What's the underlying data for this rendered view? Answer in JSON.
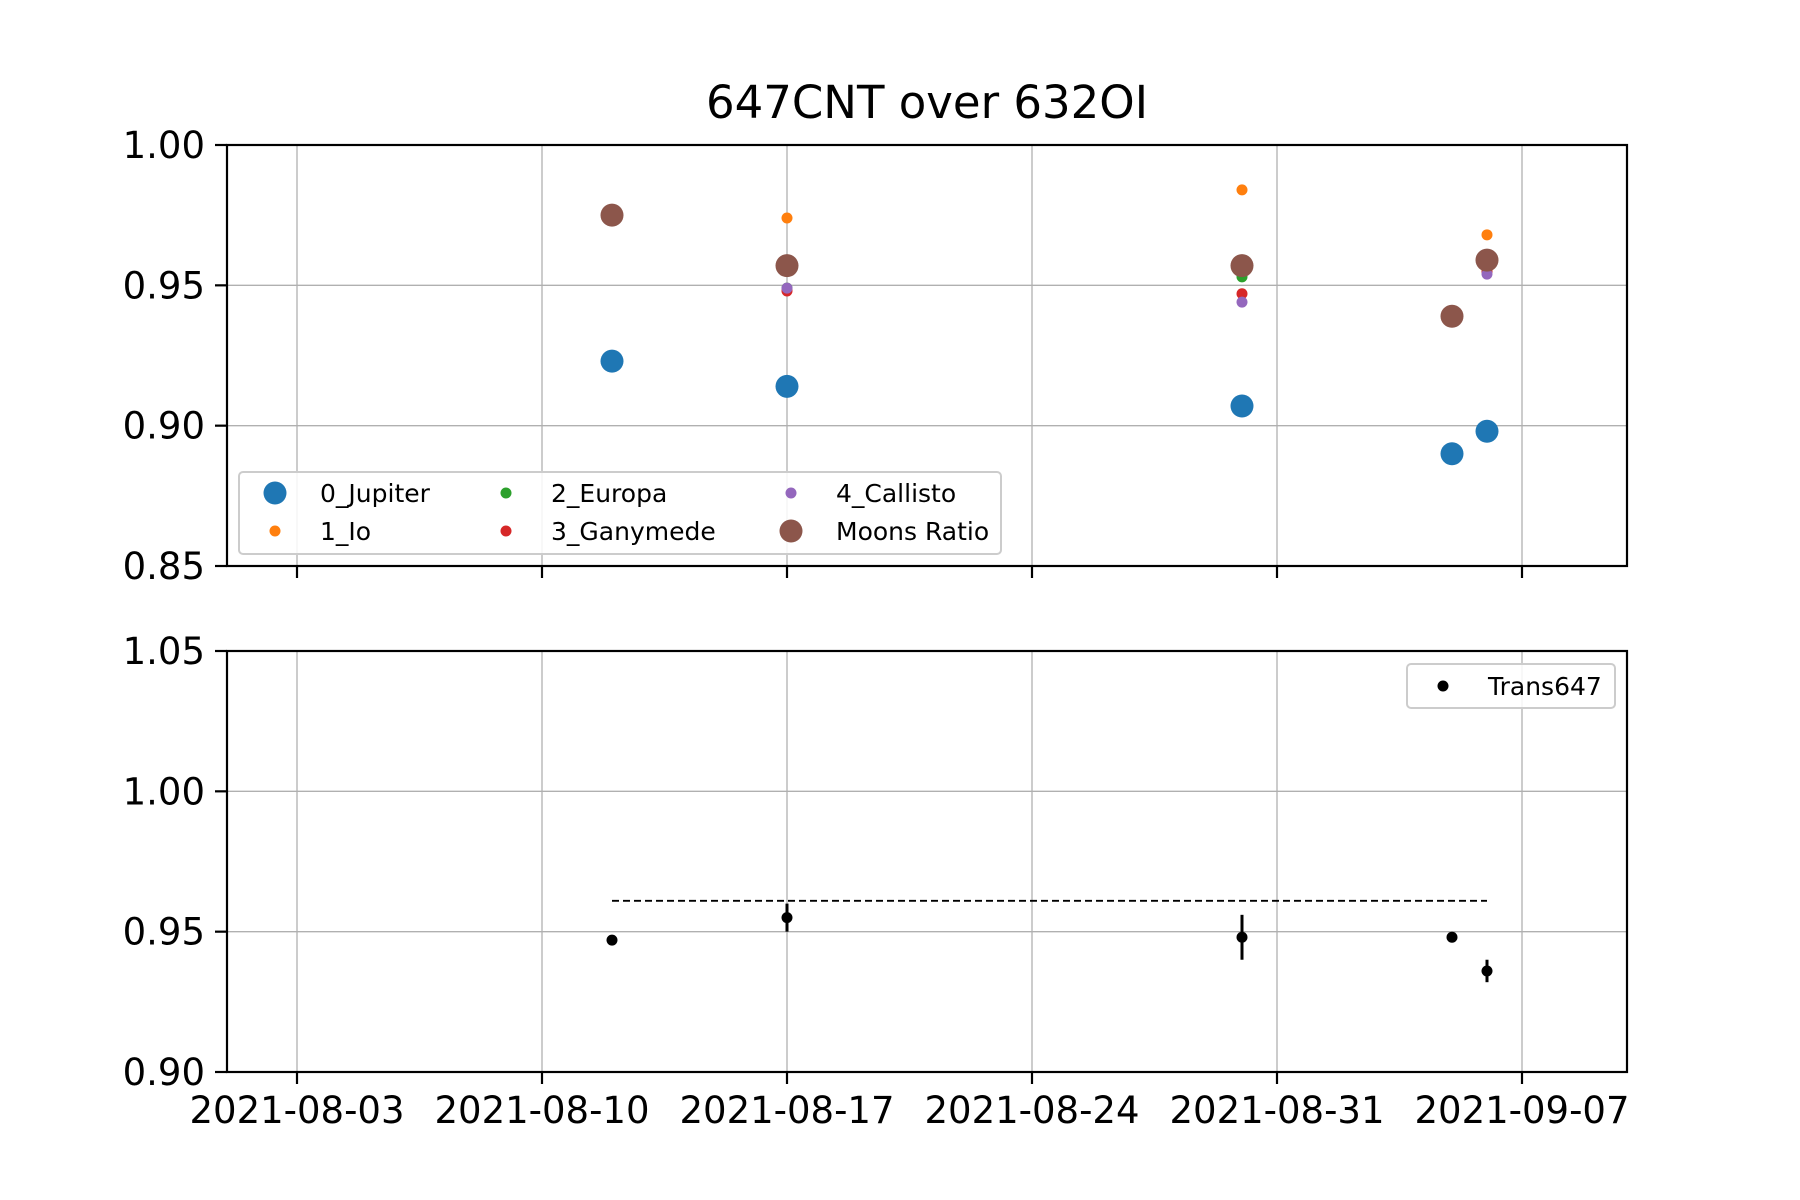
{
  "chart_data": [
    {
      "type": "scatter",
      "title": "647CNT over 632OI",
      "xlabel": "",
      "ylabel": "",
      "x_ticks": [
        "2021-08-03",
        "2021-08-10",
        "2021-08-17",
        "2021-08-24",
        "2021-08-31",
        "2021-09-07"
      ],
      "x_tick_labels_visible": false,
      "xlim": [
        "2021-08-01",
        "2021-09-10"
      ],
      "ylim": [
        0.85,
        1.0
      ],
      "y_ticks": [
        "0.85",
        "0.90",
        "0.95",
        "1.00"
      ],
      "grid": true,
      "legend_position": "lower-left",
      "series": [
        {
          "name": "0_Jupiter",
          "color": "#1f77b4",
          "marker": "large",
          "points": [
            [
              "2021-08-12",
              0.923
            ],
            [
              "2021-08-17",
              0.914
            ],
            [
              "2021-08-30",
              0.907
            ],
            [
              "2021-09-05",
              0.89
            ],
            [
              "2021-09-06",
              0.898
            ]
          ]
        },
        {
          "name": "1_Io",
          "color": "#ff7f0e",
          "marker": "small",
          "points": [
            [
              "2021-08-17",
              0.974
            ],
            [
              "2021-08-30",
              0.984
            ],
            [
              "2021-09-06",
              0.968
            ]
          ]
        },
        {
          "name": "2_Europa",
          "color": "#2ca02c",
          "marker": "small",
          "points": [
            [
              "2021-08-17",
              0.949
            ],
            [
              "2021-08-30",
              0.953
            ],
            [
              "2021-09-06",
              0.955
            ]
          ]
        },
        {
          "name": "3_Ganymede",
          "color": "#d62728",
          "marker": "small",
          "points": [
            [
              "2021-08-17",
              0.948
            ],
            [
              "2021-08-30",
              0.947
            ],
            [
              "2021-09-06",
              0.955
            ]
          ]
        },
        {
          "name": "4_Callisto",
          "color": "#9467bd",
          "marker": "small",
          "points": [
            [
              "2021-08-17",
              0.949
            ],
            [
              "2021-08-30",
              0.944
            ],
            [
              "2021-09-06",
              0.954
            ]
          ]
        },
        {
          "name": "Moons Ratio",
          "color": "#8c564b",
          "marker": "large",
          "points": [
            [
              "2021-08-12",
              0.975
            ],
            [
              "2021-08-17",
              0.957
            ],
            [
              "2021-08-30",
              0.957
            ],
            [
              "2021-09-05",
              0.939
            ],
            [
              "2021-09-06",
              0.959
            ]
          ]
        }
      ]
    },
    {
      "type": "scatter",
      "title": "",
      "xlabel": "",
      "ylabel": "",
      "x_ticks": [
        "2021-08-03",
        "2021-08-10",
        "2021-08-17",
        "2021-08-24",
        "2021-08-31",
        "2021-09-07"
      ],
      "xlim": [
        "2021-08-01",
        "2021-09-10"
      ],
      "ylim": [
        0.9,
        1.05
      ],
      "y_ticks": [
        "0.90",
        "0.95",
        "1.00",
        "1.05"
      ],
      "grid": true,
      "legend_position": "upper-right",
      "series": [
        {
          "name": "Trans647",
          "color": "#000000",
          "marker": "small",
          "error_bars": true,
          "points": [
            [
              "2021-08-12",
              0.947,
              0.0
            ],
            [
              "2021-08-17",
              0.955,
              0.005
            ],
            [
              "2021-08-30",
              0.948,
              0.008
            ],
            [
              "2021-09-05",
              0.948,
              0.0
            ],
            [
              "2021-09-06",
              0.936,
              0.004
            ]
          ]
        }
      ],
      "reference_line": {
        "style": "dashed",
        "color": "#000000",
        "y": 0.961,
        "x_start": "2021-08-12",
        "x_end": "2021-09-06"
      }
    }
  ]
}
